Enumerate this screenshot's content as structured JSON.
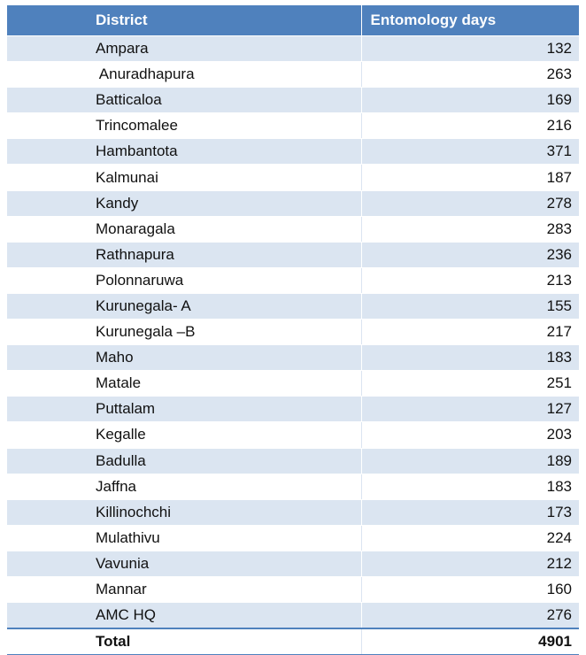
{
  "table": {
    "headers": [
      "District",
      "Entomology days"
    ],
    "rows": [
      [
        "Ampara",
        "132"
      ],
      [
        " Anuradhapura",
        "263"
      ],
      [
        "Batticaloa",
        "169"
      ],
      [
        "Trincomalee",
        "216"
      ],
      [
        "Hambantota",
        "371"
      ],
      [
        "Kalmunai",
        "187"
      ],
      [
        "Kandy",
        "278"
      ],
      [
        "Monaragala",
        "283"
      ],
      [
        "Rathnapura",
        "236"
      ],
      [
        "Polonnaruwa",
        "213"
      ],
      [
        "Kurunegala- A",
        "155"
      ],
      [
        "Kurunegala –B",
        "217"
      ],
      [
        "Maho",
        "183"
      ],
      [
        "Matale",
        "251"
      ],
      [
        "Puttalam",
        "127"
      ],
      [
        "Kegalle",
        "203"
      ],
      [
        "Badulla",
        "189"
      ],
      [
        "Jaffna",
        "183"
      ],
      [
        "Killinochchi",
        "173"
      ],
      [
        "Mulathivu",
        "224"
      ],
      [
        "Vavunia",
        "212"
      ],
      [
        "Mannar",
        "160"
      ],
      [
        "AMC HQ",
        "276"
      ]
    ],
    "total": [
      "Total",
      "4901"
    ]
  },
  "colors": {
    "header_bg": "#4f81bd",
    "stripe_bg": "#dbe5f1",
    "header_text": "#ffffff"
  }
}
